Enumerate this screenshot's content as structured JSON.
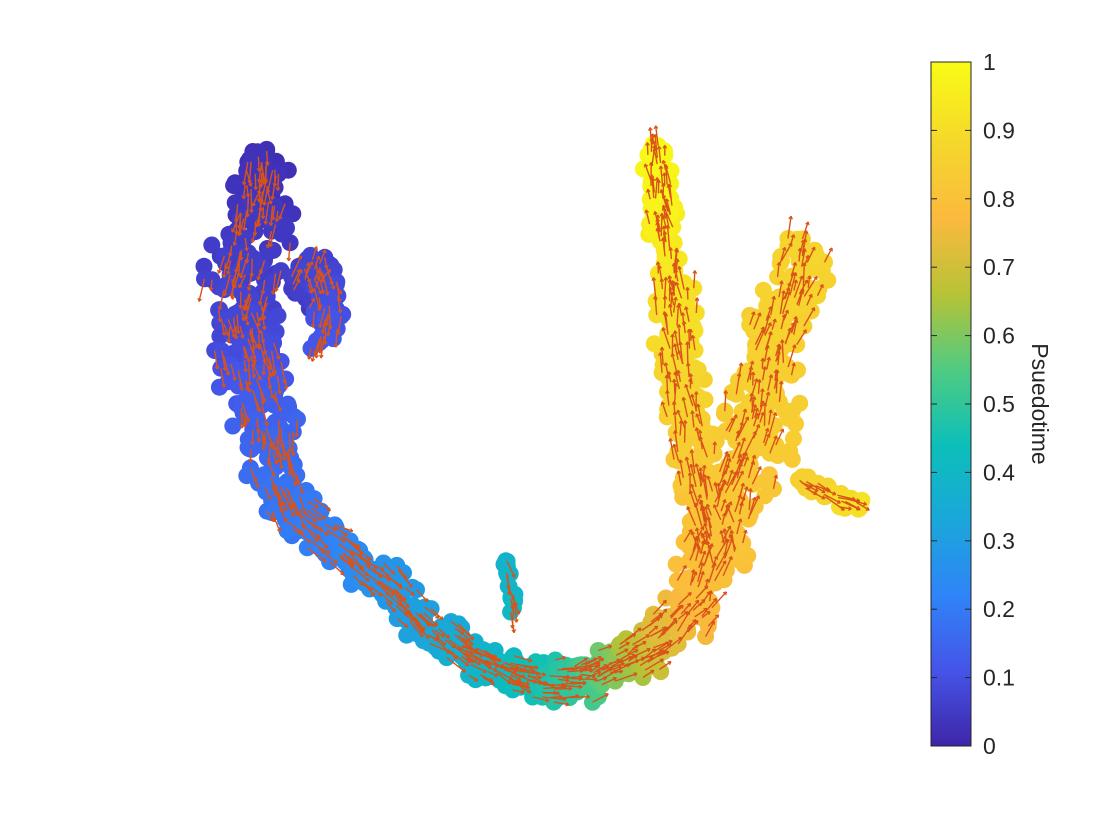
{
  "chart_data": {
    "type": "scatter",
    "title": "",
    "xlabel": "",
    "ylabel": "",
    "axes_visible": false,
    "grid": false,
    "colorbar": {
      "label": "Psuedotime",
      "range": [
        0,
        1
      ],
      "ticks": [
        0,
        0.1,
        0.2,
        0.3,
        0.4,
        0.5,
        0.6,
        0.7,
        0.8,
        0.9,
        1
      ],
      "tick_labels": [
        "0",
        "0.1",
        "0.2",
        "0.3",
        "0.4",
        "0.5",
        "0.6",
        "0.7",
        "0.8",
        "0.9",
        "1"
      ],
      "colormap": "parula-like",
      "colormap_stops": [
        "#3e26a8",
        "#4554e8",
        "#2f84f8",
        "#1aa7da",
        "#0cbfb9",
        "#4fcb82",
        "#b6c336",
        "#fbb93e",
        "#f5d72c",
        "#f9fb15"
      ],
      "placement": "right"
    },
    "point_color_encoding": "Psuedotime",
    "arrow_color": "#d95319",
    "arrows": "velocity field overlaid on points",
    "structure": "U-shaped trajectory: left lobe (pseudotime ~0-0.2) descends into a bottom bend (~0.3-0.6) and rises into a right lobe (~0.8-1.0) with a small side branch"
  }
}
